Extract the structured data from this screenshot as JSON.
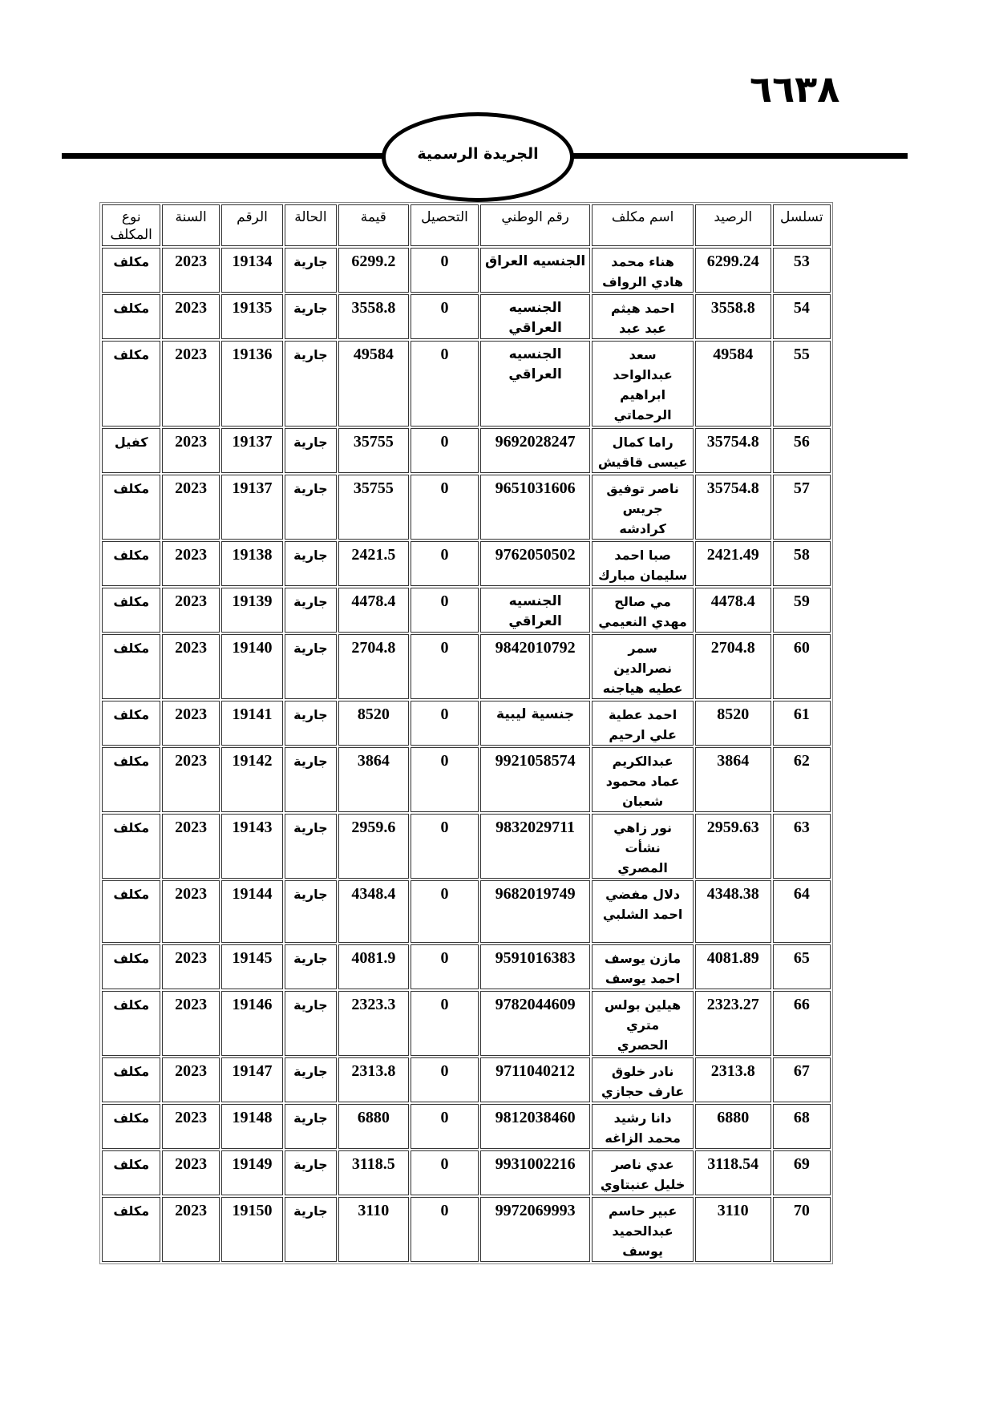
{
  "page_number": "٦٦٣٨",
  "header_title": "الجريدة الرسمية",
  "table": {
    "columns": [
      "تسلسل",
      "الرصيد",
      "اسم مكلف",
      "رقم الوطني",
      "التحصيل",
      "قيمة",
      "الحالة",
      "الرقم",
      "السنة",
      "نوع المكلف"
    ],
    "rows": [
      [
        "53",
        "6299.24",
        "هناء محمد\nهادي الرواف",
        "الجنسيه العراق",
        "0",
        "6299.2",
        "جارية",
        "19134",
        "2023",
        "مكلف"
      ],
      [
        "54",
        "3558.8",
        "احمد هيثم\nعبد عبد",
        "الجنسيه\nالعراقي",
        "0",
        "3558.8",
        "جارية",
        "19135",
        "2023",
        "مكلف"
      ],
      [
        "55",
        "49584",
        "سعد\nعبدالواحد\nابراهيم\nالرحماتي",
        "الجنسيه\nالعراقي",
        "0",
        "49584",
        "جارية",
        "19136",
        "2023",
        "مكلف"
      ],
      [
        "56",
        "35754.8",
        "راما كمال\nعيسى قاقيش",
        "9692028247",
        "0",
        "35755",
        "جارية",
        "19137",
        "2023",
        "كفيل"
      ],
      [
        "57",
        "35754.8",
        "ناصر توفيق\nجريس\nكرادشه",
        "9651031606",
        "0",
        "35755",
        "جارية",
        "19137",
        "2023",
        "مكلف"
      ],
      [
        "58",
        "2421.49",
        "صبا احمد\nسليمان مبارك",
        "9762050502",
        "0",
        "2421.5",
        "جارية",
        "19138",
        "2023",
        "مكلف"
      ],
      [
        "59",
        "4478.4",
        "مي صالح\nمهدي النعيمي",
        "الجنسيه\nالعراقي",
        "0",
        "4478.4",
        "جارية",
        "19139",
        "2023",
        "مكلف"
      ],
      [
        "60",
        "2704.8",
        "سمر\nنصرالدين\nعطيه هياجنه",
        "9842010792",
        "0",
        "2704.8",
        "جارية",
        "19140",
        "2023",
        "مكلف"
      ],
      [
        "61",
        "8520",
        "احمد عطية\nعلي ارحيم",
        "جنسية ليبية",
        "0",
        "8520",
        "جارية",
        "19141",
        "2023",
        "مكلف"
      ],
      [
        "62",
        "3864",
        "عبدالكريم\nعماد محمود\nشعبان",
        "9921058574",
        "0",
        "3864",
        "جارية",
        "19142",
        "2023",
        "مكلف"
      ],
      [
        "63",
        "2959.63",
        "نور زاهي\nنشأت\nالمصري",
        "9832029711",
        "0",
        "2959.6",
        "جارية",
        "19143",
        "2023",
        "مكلف"
      ],
      [
        "64",
        "4348.38",
        "دلال مفضي\nاحمد الشلبي",
        "9682019749",
        "0",
        "4348.4",
        "جارية",
        "19144",
        "2023",
        "مكلف"
      ],
      [
        "65",
        "4081.89",
        "مازن يوسف\nاحمد يوسف",
        "9591016383",
        "0",
        "4081.9",
        "جارية",
        "19145",
        "2023",
        "مكلف"
      ],
      [
        "66",
        "2323.27",
        "هيلين بولس\nمتري\nالحصري",
        "9782044609",
        "0",
        "2323.3",
        "جارية",
        "19146",
        "2023",
        "مكلف"
      ],
      [
        "67",
        "2313.8",
        "نادر خلوق\nعارف حجازي",
        "9711040212",
        "0",
        "2313.8",
        "جارية",
        "19147",
        "2023",
        "مكلف"
      ],
      [
        "68",
        "6880",
        "دانا رشيد\nمحمد الزاغه",
        "9812038460",
        "0",
        "6880",
        "جارية",
        "19148",
        "2023",
        "مكلف"
      ],
      [
        "69",
        "3118.54",
        "عدي ناصر\nخليل عنبتاوي",
        "9931002216",
        "0",
        "3118.5",
        "جارية",
        "19149",
        "2023",
        "مكلف"
      ],
      [
        "70",
        "3110",
        "عبير حاسم\nعبدالحميد\nيوسف",
        "9972069993",
        "0",
        "3110",
        "جارية",
        "19150",
        "2023",
        "مكلف"
      ]
    ]
  }
}
